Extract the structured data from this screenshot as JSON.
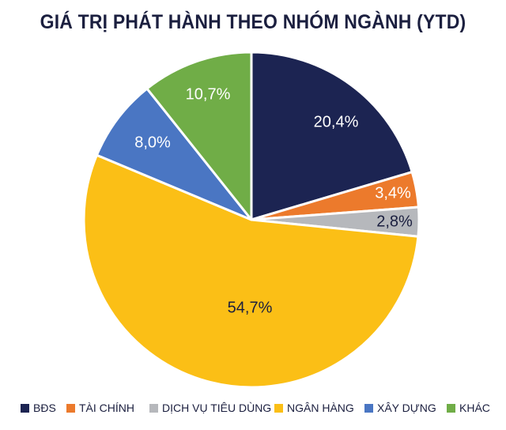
{
  "chart_data": {
    "type": "pie",
    "title": "GIÁ TRỊ PHÁT HÀNH THEO NHÓM NGÀNH (YTD)",
    "slices": [
      {
        "label": "BĐS",
        "value": 20.4,
        "display": "20,4%",
        "color": "#1c2452",
        "text_color": "#ffffff"
      },
      {
        "label": "TÀI CHÍNH",
        "value": 3.4,
        "display": "3,4%",
        "color": "#ec7a2c",
        "text_color": "#ffffff"
      },
      {
        "label": "DỊCH VỤ TIÊU DÙNG",
        "value": 2.8,
        "display": "2,8%",
        "color": "#b6b8bc",
        "text_color": "#1b1f3f"
      },
      {
        "label": "NGÂN HÀNG",
        "value": 54.7,
        "display": "54,7%",
        "color": "#fbbf16",
        "text_color": "#1b1f3f"
      },
      {
        "label": "XÂY DỰNG",
        "value": 8.0,
        "display": "8,0%",
        "color": "#4a76c3",
        "text_color": "#ffffff"
      },
      {
        "label": "KHÁC",
        "value": 10.7,
        "display": "10,7%",
        "color": "#70ad47",
        "text_color": "#ffffff"
      }
    ],
    "start_angle_deg": 0,
    "direction": "clockwise",
    "legend_position": "bottom"
  }
}
